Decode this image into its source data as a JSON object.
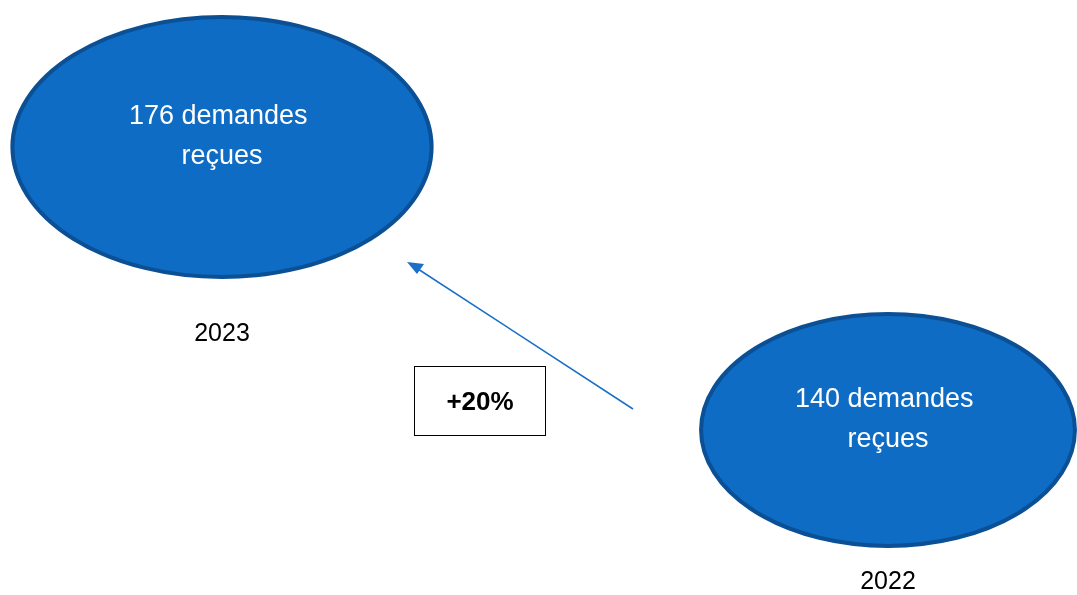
{
  "chart_data": {
    "type": "other",
    "categories": [
      "2023",
      "2022"
    ],
    "values": [
      176,
      140
    ],
    "value_labels": [
      "176 demandes reçues",
      "140 demandes reçues"
    ],
    "color": "#0f6cc4",
    "annotations": [
      "+20%"
    ]
  }
}
